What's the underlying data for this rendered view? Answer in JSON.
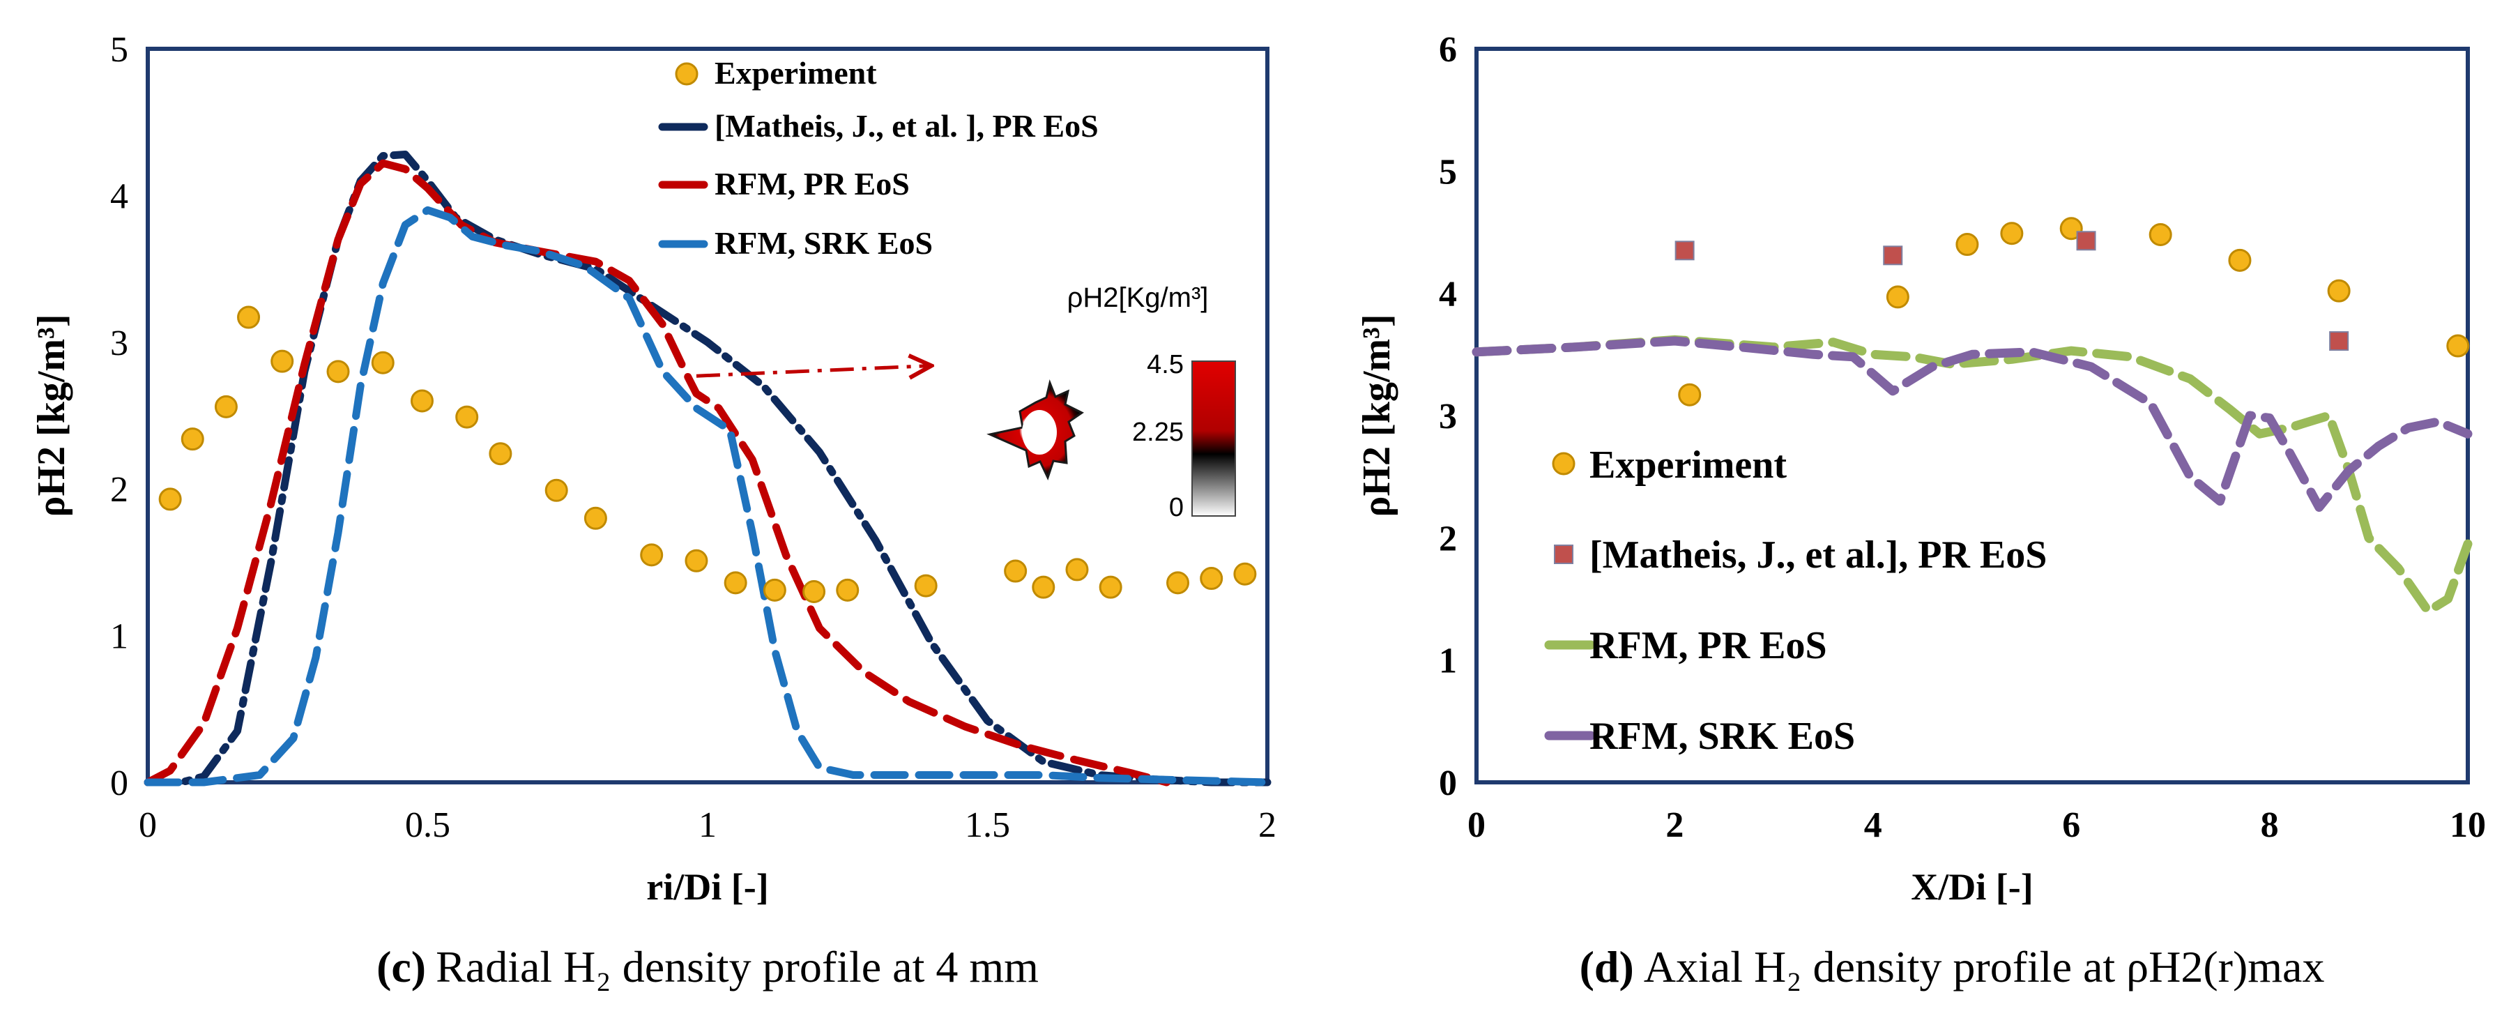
{
  "chart_data": [
    {
      "type": "line",
      "panel": "c",
      "caption_letter": "(c)",
      "caption_text": "Radial H₂ density profile at 4 mm",
      "ylabel": "ρH2 [kg/m³]",
      "xlabel": "ri/Di [-]",
      "xlim": [
        0,
        2
      ],
      "ylim": [
        0,
        5
      ],
      "xticks": [
        "0",
        "0.5",
        "1",
        "1.5",
        "2"
      ],
      "yticks": [
        "0",
        "1",
        "2",
        "3",
        "4",
        "5"
      ],
      "legend": [
        "Experiment",
        "[Matheis, J., et al. ], PR EoS",
        "RFM, PR EoS",
        "RFM, SRK EoS"
      ],
      "colors": {
        "experiment": "#F4B41A",
        "matheis": "#0E2A5C",
        "rfm_pr": "#C00000",
        "rfm_srk": "#1F73BE"
      },
      "series": [
        {
          "name": "Experiment",
          "style": "markers",
          "x": [
            0.04,
            0.08,
            0.14,
            0.18,
            0.24,
            0.34,
            0.42,
            0.49,
            0.57,
            0.63,
            0.73,
            0.8,
            0.9,
            0.98,
            1.05,
            1.12,
            1.19,
            1.25,
            1.39,
            1.55,
            1.6,
            1.66,
            1.72,
            1.84,
            1.9,
            1.96
          ],
          "y": [
            1.93,
            2.34,
            2.56,
            3.17,
            2.87,
            2.8,
            2.86,
            2.6,
            2.49,
            2.24,
            1.99,
            1.8,
            1.55,
            1.51,
            1.36,
            1.31,
            1.3,
            1.31,
            1.34,
            1.44,
            1.33,
            1.45,
            1.33,
            1.36,
            1.39,
            1.42
          ]
        },
        {
          "name": "[Matheis, J., et al. ], PR EoS",
          "style": "dashdot",
          "x": [
            0.0,
            0.06,
            0.1,
            0.16,
            0.22,
            0.28,
            0.34,
            0.38,
            0.42,
            0.46,
            0.5,
            0.55,
            0.62,
            0.7,
            0.8,
            0.9,
            1.0,
            1.1,
            1.2,
            1.3,
            1.4,
            1.5,
            1.6,
            1.7,
            1.8,
            1.9,
            2.0
          ],
          "y": [
            0.0,
            0.0,
            0.04,
            0.35,
            1.5,
            2.8,
            3.7,
            4.1,
            4.27,
            4.28,
            4.1,
            3.85,
            3.7,
            3.6,
            3.5,
            3.25,
            3.0,
            2.7,
            2.25,
            1.65,
            0.95,
            0.42,
            0.14,
            0.05,
            0.02,
            0.0,
            0.0
          ]
        },
        {
          "name": "RFM, PR EoS",
          "style": "dash",
          "x": [
            0.0,
            0.04,
            0.1,
            0.16,
            0.22,
            0.28,
            0.34,
            0.38,
            0.42,
            0.46,
            0.5,
            0.56,
            0.62,
            0.7,
            0.8,
            0.86,
            0.92,
            0.96,
            0.98,
            1.02,
            1.08,
            1.14,
            1.2,
            1.28,
            1.36,
            1.46,
            1.56,
            1.66,
            1.76,
            1.82
          ],
          "y": [
            0.0,
            0.08,
            0.4,
            1.05,
            1.9,
            2.85,
            3.7,
            4.08,
            4.22,
            4.18,
            4.05,
            3.8,
            3.68,
            3.62,
            3.55,
            3.42,
            3.12,
            2.8,
            2.65,
            2.55,
            2.2,
            1.55,
            1.05,
            0.75,
            0.55,
            0.38,
            0.25,
            0.15,
            0.06,
            0.0
          ]
        },
        {
          "name": "RFM, SRK EoS",
          "style": "dash",
          "x": [
            0.0,
            0.1,
            0.2,
            0.26,
            0.3,
            0.34,
            0.38,
            0.42,
            0.46,
            0.5,
            0.54,
            0.58,
            0.64,
            0.7,
            0.78,
            0.86,
            0.92,
            0.98,
            1.04,
            1.08,
            1.12,
            1.16,
            1.2,
            1.26,
            1.4,
            1.6,
            1.7,
            2.0
          ],
          "y": [
            0.0,
            0.0,
            0.05,
            0.3,
            0.85,
            1.7,
            2.7,
            3.4,
            3.8,
            3.9,
            3.85,
            3.72,
            3.66,
            3.62,
            3.52,
            3.3,
            2.8,
            2.55,
            2.4,
            1.7,
            0.9,
            0.35,
            0.1,
            0.05,
            0.05,
            0.05,
            0.03,
            0.0
          ]
        }
      ],
      "inset": {
        "title": "ρH2[Kg/m³]",
        "max_label": "4.5",
        "mid_label": "2.25",
        "min_label": "0"
      },
      "annotation_arrow": {
        "from": [
          0.98,
          2.77
        ],
        "to": [
          1.4,
          2.84
        ]
      }
    },
    {
      "type": "line",
      "panel": "d",
      "caption_letter": "(d)",
      "caption_text": "Axial H₂ density profile at ρH2(r)max",
      "ylabel": "ρH2 [kg/m³]",
      "xlabel": "X/Di [-]",
      "xlim": [
        0,
        10
      ],
      "ylim": [
        0,
        6
      ],
      "xticks": [
        "0",
        "2",
        "4",
        "6",
        "8",
        "10"
      ],
      "yticks": [
        "0",
        "1",
        "2",
        "3",
        "4",
        "5",
        "6"
      ],
      "legend": [
        "Experiment",
        "[Matheis, J., et al.], PR EoS",
        "RFM, PR EoS",
        "RFM, SRK EoS"
      ],
      "colors": {
        "experiment": "#F4B41A",
        "matheis": "#C0504D",
        "rfm_pr": "#9BBB59",
        "rfm_srk": "#8064A2"
      },
      "series": [
        {
          "name": "Experiment",
          "style": "markers",
          "x": [
            2.15,
            4.25,
            4.95,
            5.4,
            6.0,
            6.9,
            7.7,
            8.7,
            9.9
          ],
          "y": [
            3.17,
            3.97,
            4.4,
            4.49,
            4.53,
            4.48,
            4.27,
            4.02,
            3.57
          ]
        },
        {
          "name": "[Matheis, J., et al.], PR EoS",
          "style": "square-markers",
          "x": [
            2.1,
            4.2,
            6.15,
            8.7
          ],
          "y": [
            4.35,
            4.31,
            4.43,
            3.61
          ]
        },
        {
          "name": "RFM, PR EoS",
          "style": "dash",
          "x": [
            0.0,
            1.0,
            2.0,
            3.0,
            3.6,
            4.0,
            4.4,
            4.8,
            5.4,
            6.0,
            6.6,
            7.2,
            7.6,
            7.9,
            8.2,
            8.6,
            8.8,
            9.0,
            9.3,
            9.6,
            9.8,
            10.0
          ],
          "y": [
            3.52,
            3.56,
            3.62,
            3.56,
            3.6,
            3.5,
            3.48,
            3.42,
            3.46,
            3.53,
            3.48,
            3.3,
            3.05,
            2.85,
            2.9,
            3.0,
            2.55,
            2.0,
            1.75,
            1.4,
            1.5,
            1.95
          ]
        },
        {
          "name": "RFM, SRK EoS",
          "style": "dash",
          "x": [
            0.0,
            1.0,
            2.0,
            2.8,
            3.4,
            3.8,
            4.2,
            4.6,
            5.0,
            5.6,
            6.2,
            6.8,
            7.2,
            7.5,
            7.8,
            8.0,
            8.2,
            8.5,
            8.8,
            9.1,
            9.4,
            9.7,
            10.0
          ],
          "y": [
            3.52,
            3.56,
            3.61,
            3.55,
            3.5,
            3.48,
            3.2,
            3.4,
            3.5,
            3.52,
            3.4,
            3.1,
            2.5,
            2.3,
            3.0,
            2.98,
            2.7,
            2.25,
            2.55,
            2.75,
            2.9,
            2.95,
            2.85
          ]
        }
      ]
    }
  ]
}
